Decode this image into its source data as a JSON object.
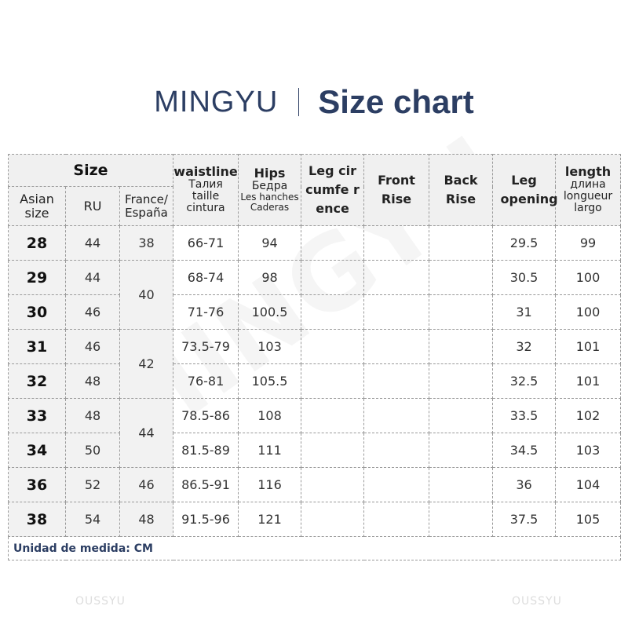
{
  "header": {
    "brand": "MINGYU",
    "title": "Size chart"
  },
  "table": {
    "size_group": "Size",
    "asian_size": "Asian size",
    "ru": "RU",
    "france": "France/ España",
    "waist": {
      "title": "waistline",
      "sub": "Талия taille cintura"
    },
    "hips": {
      "title": "Hips",
      "sub1": "Бедра",
      "sub2": "Les hanches Caderas"
    },
    "leg_circ": "Leg circumfe rence",
    "front_rise": "Front Rise",
    "back_rise": "Back Rise",
    "leg_opening": "Leg opening",
    "length": {
      "title": "length",
      "sub": "длина longueur largo"
    },
    "rows": [
      {
        "asian": "28",
        "ru": "44",
        "waist": "66-71",
        "hips": "94",
        "leg_opening": "29.5",
        "length": "99"
      },
      {
        "asian": "29",
        "ru": "44",
        "waist": "68-74",
        "hips": "98",
        "leg_opening": "30.5",
        "length": "100"
      },
      {
        "asian": "30",
        "ru": "46",
        "waist": "71-76",
        "hips": "100.5",
        "leg_opening": "31",
        "length": "100"
      },
      {
        "asian": "31",
        "ru": "46",
        "waist": "73.5-79",
        "hips": "103",
        "leg_opening": "32",
        "length": "101"
      },
      {
        "asian": "32",
        "ru": "48",
        "waist": "76-81",
        "hips": "105.5",
        "leg_opening": "32.5",
        "length": "101"
      },
      {
        "asian": "33",
        "ru": "48",
        "waist": "78.5-86",
        "hips": "108",
        "leg_opening": "33.5",
        "length": "102"
      },
      {
        "asian": "34",
        "ru": "50",
        "waist": "81.5-89",
        "hips": "111",
        "leg_opening": "34.5",
        "length": "103"
      },
      {
        "asian": "36",
        "ru": "52",
        "waist": "86.5-91",
        "hips": "116",
        "leg_opening": "36",
        "length": "104"
      },
      {
        "asian": "38",
        "ru": "54",
        "waist": "91.5-96",
        "hips": "121",
        "leg_opening": "37.5",
        "length": "105"
      }
    ],
    "france_groups": [
      {
        "value": "38",
        "span": 1
      },
      {
        "value": "40",
        "span": 2
      },
      {
        "value": "42",
        "span": 2
      },
      {
        "value": "44",
        "span": 2
      },
      {
        "value": "46",
        "span": 1
      },
      {
        "value": "48",
        "span": 1
      }
    ],
    "footer": "Unidad de medida: CM"
  },
  "watermarks": {
    "left": "OUSSYU",
    "right": "OUSSYU",
    "center": "MINGYU"
  }
}
